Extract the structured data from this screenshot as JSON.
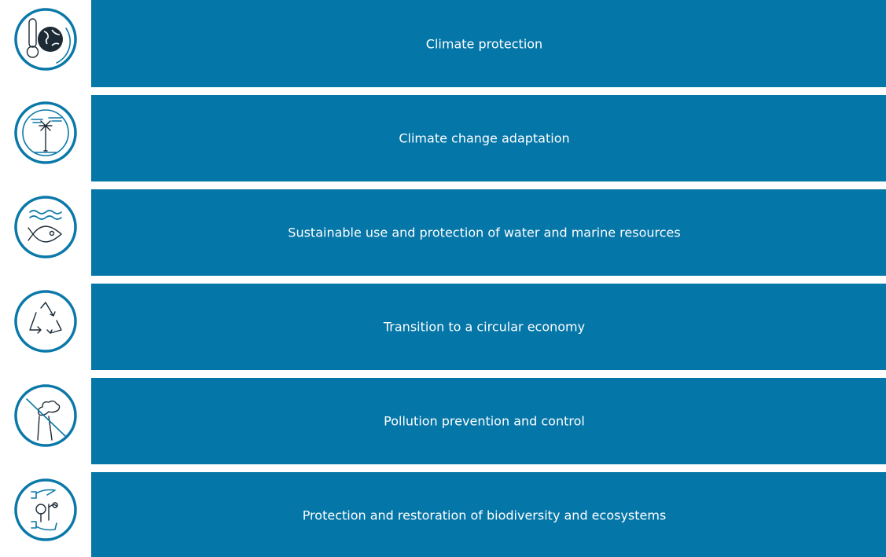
{
  "items": [
    {
      "label": "Climate protection"
    },
    {
      "label": "Climate change adaptation"
    },
    {
      "label": "Sustainable use and protection of water and marine resources"
    },
    {
      "label": "Transition to a circular economy"
    },
    {
      "label": "Pollution prevention and control"
    },
    {
      "label": "Protection and restoration of biodiversity and ecosystems"
    }
  ]
}
